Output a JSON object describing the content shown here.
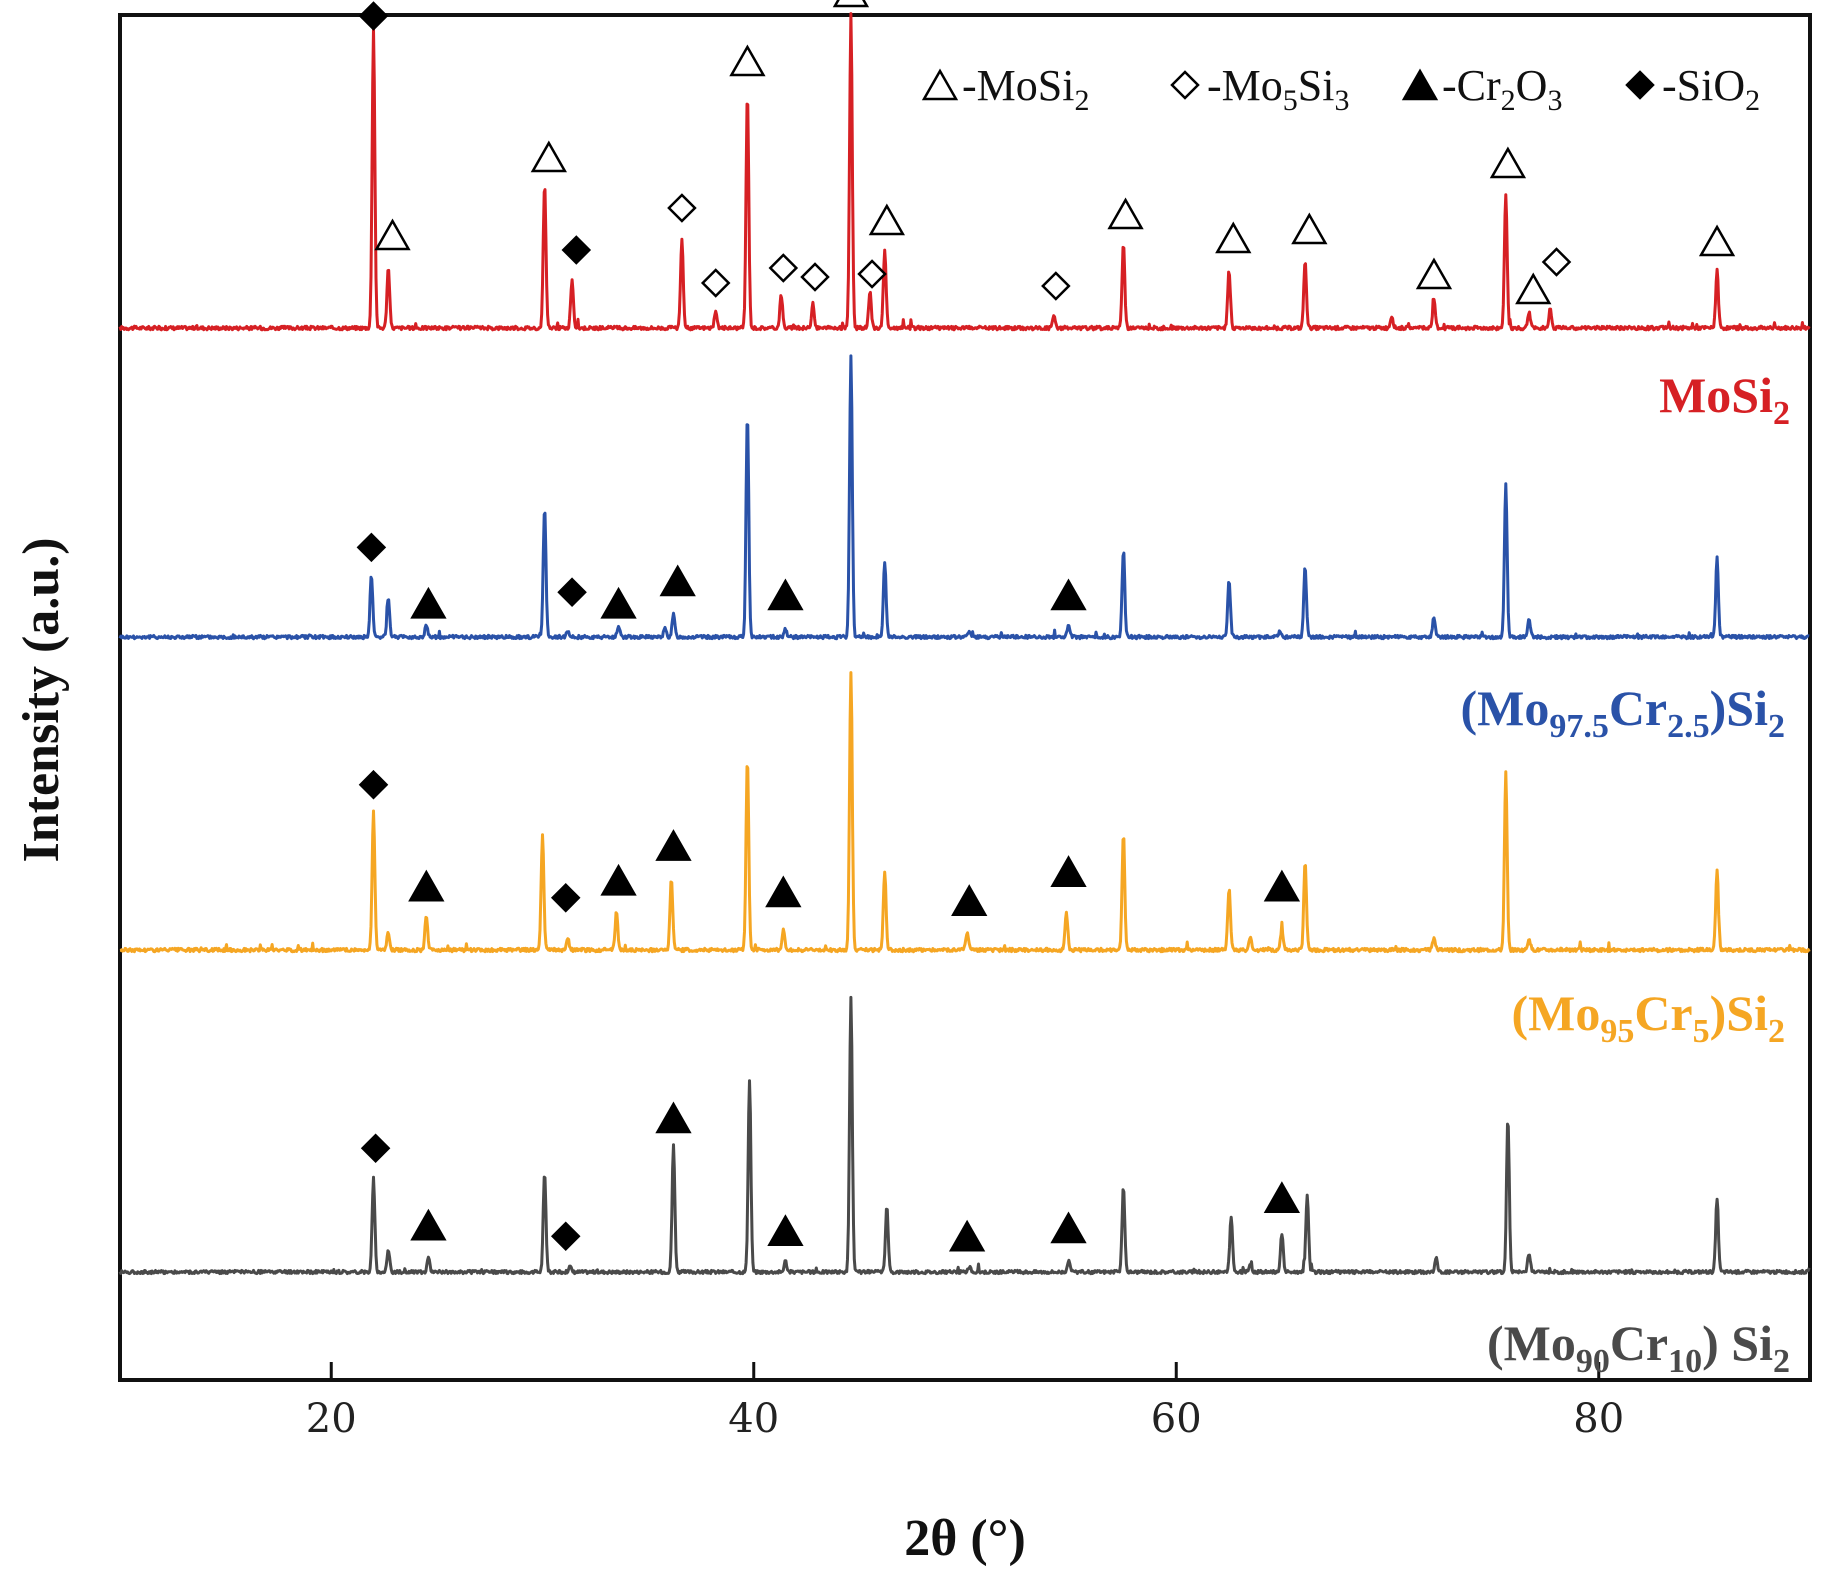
{
  "chart_data": {
    "type": "line",
    "title": "",
    "xlabel": "2θ (°)",
    "ylabel": "Intensity (a.u.)",
    "xlim": [
      10,
      90
    ],
    "xticks": [
      20,
      40,
      60,
      80
    ],
    "legend": [
      {
        "marker": "open-triangle",
        "prefix": "-",
        "base": "MoSi",
        "sub": "2",
        "tail": "",
        "sub2": "",
        "phase": "MoSi2"
      },
      {
        "marker": "open-diamond",
        "prefix": "-",
        "base": "Mo",
        "sub": "5",
        "tail": "Si",
        "sub2": "3",
        "phase": "Mo5Si3"
      },
      {
        "marker": "filled-triangle",
        "prefix": "-",
        "base": "Cr",
        "sub": "2",
        "tail": "O",
        "sub2": "3",
        "phase": "Cr2O3"
      },
      {
        "marker": "filled-diamond",
        "prefix": "-",
        "base": "SiO",
        "sub": "2",
        "tail": "",
        "sub2": "",
        "phase": "SiO2"
      }
    ],
    "series": [
      {
        "name": "MoSi2",
        "label_parts": [
          {
            "t": "MoSi",
            "sub": false
          },
          {
            "t": "2",
            "sub": true
          }
        ],
        "color": "#d62024",
        "peaks": [
          [
            22.0,
            1.0
          ],
          [
            22.7,
            0.2
          ],
          [
            30.1,
            0.48
          ],
          [
            31.4,
            0.16
          ],
          [
            36.6,
            0.29
          ],
          [
            38.2,
            0.05
          ],
          [
            39.7,
            0.78
          ],
          [
            41.3,
            0.11
          ],
          [
            42.8,
            0.08
          ],
          [
            44.6,
            1.03
          ],
          [
            45.5,
            0.12
          ],
          [
            46.2,
            0.26
          ],
          [
            54.2,
            0.04
          ],
          [
            57.5,
            0.28
          ],
          [
            62.5,
            0.19
          ],
          [
            66.1,
            0.22
          ],
          [
            70.2,
            0.04
          ],
          [
            72.2,
            0.09
          ],
          [
            75.6,
            0.45
          ],
          [
            76.7,
            0.05
          ],
          [
            77.7,
            0.06
          ],
          [
            85.6,
            0.19
          ]
        ],
        "markers": [
          {
            "x": 22.0,
            "y": 1.04,
            "m": "filled-diamond"
          },
          {
            "x": 22.9,
            "y": 0.31,
            "m": "open-triangle"
          },
          {
            "x": 30.3,
            "y": 0.57,
            "m": "open-triangle"
          },
          {
            "x": 31.6,
            "y": 0.26,
            "m": "filled-diamond"
          },
          {
            "x": 36.6,
            "y": 0.4,
            "m": "open-diamond"
          },
          {
            "x": 38.2,
            "y": 0.15,
            "m": "open-diamond"
          },
          {
            "x": 39.7,
            "y": 0.89,
            "m": "open-triangle"
          },
          {
            "x": 41.4,
            "y": 0.2,
            "m": "open-diamond"
          },
          {
            "x": 42.9,
            "y": 0.17,
            "m": "open-diamond"
          },
          {
            "x": 44.6,
            "y": 1.12,
            "m": "open-triangle"
          },
          {
            "x": 45.6,
            "y": 0.18,
            "m": "open-diamond"
          },
          {
            "x": 46.3,
            "y": 0.36,
            "m": "open-triangle"
          },
          {
            "x": 54.3,
            "y": 0.14,
            "m": "open-diamond"
          },
          {
            "x": 57.6,
            "y": 0.38,
            "m": "open-triangle"
          },
          {
            "x": 62.7,
            "y": 0.3,
            "m": "open-triangle"
          },
          {
            "x": 66.3,
            "y": 0.33,
            "m": "open-triangle"
          },
          {
            "x": 72.2,
            "y": 0.18,
            "m": "open-triangle"
          },
          {
            "x": 75.7,
            "y": 0.55,
            "m": "open-triangle"
          },
          {
            "x": 76.9,
            "y": 0.13,
            "m": "open-triangle"
          },
          {
            "x": 78.0,
            "y": 0.22,
            "m": "open-diamond"
          },
          {
            "x": 85.6,
            "y": 0.29,
            "m": "open-triangle"
          }
        ]
      },
      {
        "name": "(Mo97.5Cr2.5)Si2",
        "label_parts": [
          {
            "t": "(Mo",
            "sub": false
          },
          {
            "t": "97.5",
            "sub": true
          },
          {
            "t": "Cr",
            "sub": false
          },
          {
            "t": "2.5",
            "sub": true
          },
          {
            "t": ")Si",
            "sub": false
          },
          {
            "t": "2",
            "sub": true
          }
        ],
        "color": "#2a52a8",
        "peaks": [
          [
            21.9,
            0.22
          ],
          [
            22.7,
            0.14
          ],
          [
            24.5,
            0.04
          ],
          [
            30.1,
            0.46
          ],
          [
            31.2,
            0.02
          ],
          [
            33.6,
            0.04
          ],
          [
            35.8,
            0.03
          ],
          [
            36.2,
            0.08
          ],
          [
            39.7,
            0.8
          ],
          [
            41.5,
            0.03
          ],
          [
            44.6,
            1.0
          ],
          [
            46.2,
            0.27
          ],
          [
            50.2,
            0.02
          ],
          [
            54.9,
            0.04
          ],
          [
            57.5,
            0.31
          ],
          [
            62.5,
            0.2
          ],
          [
            64.9,
            0.02
          ],
          [
            66.1,
            0.25
          ],
          [
            72.2,
            0.07
          ],
          [
            75.6,
            0.55
          ],
          [
            76.7,
            0.06
          ],
          [
            85.6,
            0.28
          ]
        ],
        "markers": [
          {
            "x": 21.9,
            "y": 0.32,
            "m": "filled-diamond"
          },
          {
            "x": 24.6,
            "y": 0.12,
            "m": "filled-triangle"
          },
          {
            "x": 31.4,
            "y": 0.16,
            "m": "filled-diamond"
          },
          {
            "x": 33.6,
            "y": 0.12,
            "m": "filled-triangle"
          },
          {
            "x": 36.4,
            "y": 0.2,
            "m": "filled-triangle"
          },
          {
            "x": 41.5,
            "y": 0.15,
            "m": "filled-triangle"
          },
          {
            "x": 54.9,
            "y": 0.15,
            "m": "filled-triangle"
          }
        ]
      },
      {
        "name": "(Mo95Cr5)Si2",
        "label_parts": [
          {
            "t": "(Mo",
            "sub": false
          },
          {
            "t": "95",
            "sub": true
          },
          {
            "t": "Cr",
            "sub": false
          },
          {
            "t": "5",
            "sub": true
          },
          {
            "t": ")Si",
            "sub": false
          },
          {
            "t": "2",
            "sub": true
          }
        ],
        "color": "#f5a623",
        "peaks": [
          [
            22.0,
            0.48
          ],
          [
            22.7,
            0.06
          ],
          [
            24.5,
            0.12
          ],
          [
            30.0,
            0.4
          ],
          [
            31.2,
            0.04
          ],
          [
            33.5,
            0.13
          ],
          [
            36.1,
            0.25
          ],
          [
            39.7,
            0.66
          ],
          [
            41.4,
            0.07
          ],
          [
            44.6,
            0.96
          ],
          [
            46.2,
            0.27
          ],
          [
            50.1,
            0.06
          ],
          [
            54.8,
            0.13
          ],
          [
            57.5,
            0.4
          ],
          [
            62.5,
            0.21
          ],
          [
            63.5,
            0.04
          ],
          [
            65.0,
            0.07
          ],
          [
            66.1,
            0.3
          ],
          [
            72.2,
            0.04
          ],
          [
            75.6,
            0.61
          ],
          [
            76.7,
            0.04
          ],
          [
            85.6,
            0.28
          ]
        ],
        "markers": [
          {
            "x": 22.0,
            "y": 0.57,
            "m": "filled-diamond"
          },
          {
            "x": 24.5,
            "y": 0.22,
            "m": "filled-triangle"
          },
          {
            "x": 31.1,
            "y": 0.18,
            "m": "filled-diamond"
          },
          {
            "x": 33.6,
            "y": 0.24,
            "m": "filled-triangle"
          },
          {
            "x": 36.2,
            "y": 0.36,
            "m": "filled-triangle"
          },
          {
            "x": 41.4,
            "y": 0.2,
            "m": "filled-triangle"
          },
          {
            "x": 50.2,
            "y": 0.17,
            "m": "filled-triangle"
          },
          {
            "x": 54.9,
            "y": 0.27,
            "m": "filled-triangle"
          },
          {
            "x": 65.0,
            "y": 0.22,
            "m": "filled-triangle"
          }
        ]
      },
      {
        "name": "(Mo90Cr10) Si2",
        "label_parts": [
          {
            "t": "(Mo",
            "sub": false
          },
          {
            "t": "90",
            "sub": true
          },
          {
            "t": "Cr",
            "sub": false
          },
          {
            "t": "10",
            "sub": true
          },
          {
            "t": ") Si",
            "sub": false
          },
          {
            "t": "2",
            "sub": true
          }
        ],
        "color": "#4a4a4a",
        "peaks": [
          [
            22.0,
            0.34
          ],
          [
            22.7,
            0.08
          ],
          [
            24.6,
            0.05
          ],
          [
            30.1,
            0.36
          ],
          [
            31.3,
            0.02
          ],
          [
            36.2,
            0.46
          ],
          [
            39.8,
            0.7
          ],
          [
            41.5,
            0.04
          ],
          [
            44.6,
            1.0
          ],
          [
            46.3,
            0.24
          ],
          [
            50.2,
            0.02
          ],
          [
            54.9,
            0.04
          ],
          [
            57.5,
            0.31
          ],
          [
            62.6,
            0.2
          ],
          [
            63.5,
            0.03
          ],
          [
            65.0,
            0.14
          ],
          [
            66.2,
            0.28
          ],
          [
            72.3,
            0.05
          ],
          [
            75.7,
            0.56
          ],
          [
            76.7,
            0.07
          ],
          [
            85.6,
            0.27
          ]
        ],
        "markers": [
          {
            "x": 22.1,
            "y": 0.45,
            "m": "filled-diamond"
          },
          {
            "x": 24.6,
            "y": 0.17,
            "m": "filled-triangle"
          },
          {
            "x": 31.1,
            "y": 0.13,
            "m": "filled-diamond"
          },
          {
            "x": 36.2,
            "y": 0.56,
            "m": "filled-triangle"
          },
          {
            "x": 41.5,
            "y": 0.15,
            "m": "filled-triangle"
          },
          {
            "x": 50.1,
            "y": 0.13,
            "m": "filled-triangle"
          },
          {
            "x": 54.9,
            "y": 0.16,
            "m": "filled-triangle"
          },
          {
            "x": 65.0,
            "y": 0.27,
            "m": "filled-triangle"
          }
        ]
      }
    ]
  }
}
